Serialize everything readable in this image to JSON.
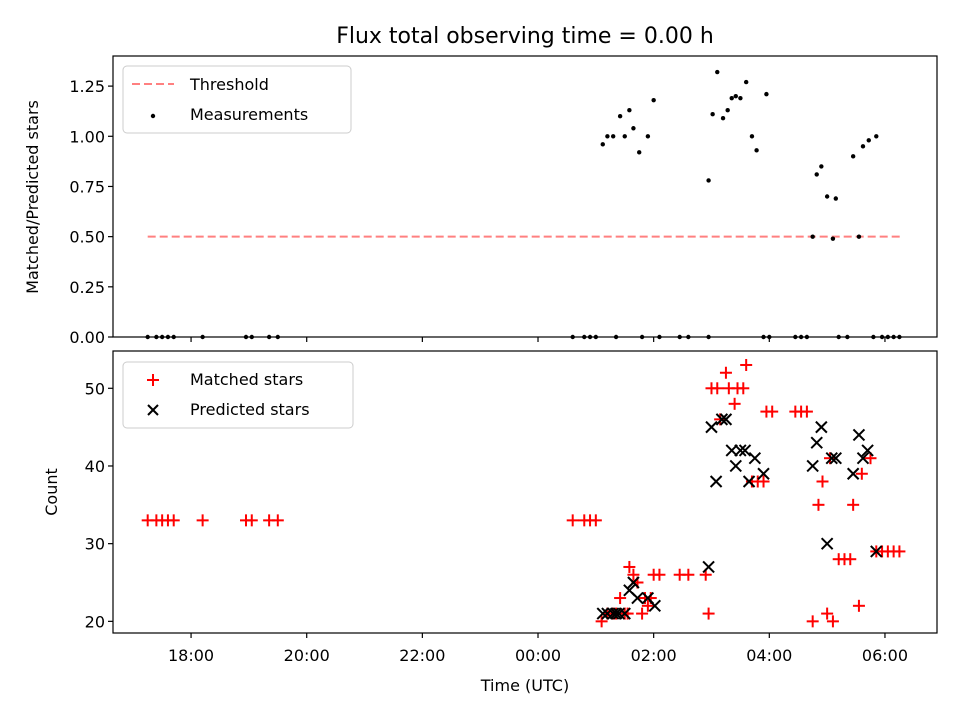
{
  "chart_data": [
    {
      "type": "scatter",
      "title": "Flux total observing time = 0.00 h",
      "xlabel": "",
      "ylabel": "Matched/Predicted stars",
      "xlim": [
        -7.35,
        6.9
      ],
      "ylim": [
        0.0,
        1.4
      ],
      "yticks": [
        0.0,
        0.25,
        0.5,
        0.75,
        1.0,
        1.25
      ],
      "ytick_labels": [
        "0.00",
        "0.25",
        "0.50",
        "0.75",
        "1.00",
        "1.25"
      ],
      "legend": {
        "position": "top-left",
        "entries": [
          "Threshold",
          "Measurements"
        ]
      },
      "series": [
        {
          "name": "Threshold",
          "kind": "dashed-line",
          "color": "#ff8080",
          "x": [
            -6.75,
            6.3
          ],
          "y": [
            0.5,
            0.5
          ]
        },
        {
          "name": "Measurements",
          "kind": "dots",
          "color": "#000000",
          "points": [
            [
              -6.75,
              0
            ],
            [
              -6.6,
              0
            ],
            [
              -6.5,
              0
            ],
            [
              -6.4,
              0
            ],
            [
              -6.3,
              0
            ],
            [
              -5.8,
              0
            ],
            [
              -5.05,
              0
            ],
            [
              -4.95,
              0
            ],
            [
              -4.65,
              0
            ],
            [
              -4.5,
              0
            ],
            [
              0.6,
              0
            ],
            [
              0.8,
              0
            ],
            [
              0.9,
              0
            ],
            [
              1.0,
              0
            ],
            [
              1.35,
              0
            ],
            [
              1.8,
              0
            ],
            [
              2.1,
              0
            ],
            [
              2.45,
              0
            ],
            [
              2.6,
              0
            ],
            [
              2.95,
              0
            ],
            [
              3.9,
              0
            ],
            [
              4.0,
              0
            ],
            [
              4.45,
              0
            ],
            [
              4.55,
              0
            ],
            [
              4.65,
              0
            ],
            [
              5.2,
              0
            ],
            [
              5.35,
              0
            ],
            [
              5.8,
              0
            ],
            [
              5.95,
              0
            ],
            [
              6.05,
              0
            ],
            [
              6.15,
              0
            ],
            [
              6.25,
              0
            ],
            [
              1.12,
              0.96
            ],
            [
              1.2,
              1.0
            ],
            [
              1.3,
              1.0
            ],
            [
              1.42,
              1.1
            ],
            [
              1.5,
              1.0
            ],
            [
              1.58,
              1.13
            ],
            [
              1.65,
              1.04
            ],
            [
              1.75,
              0.92
            ],
            [
              1.9,
              1.0
            ],
            [
              2.0,
              1.18
            ],
            [
              2.95,
              0.78
            ],
            [
              3.02,
              1.11
            ],
            [
              3.1,
              1.32
            ],
            [
              3.2,
              1.09
            ],
            [
              3.28,
              1.13
            ],
            [
              3.35,
              1.19
            ],
            [
              3.42,
              1.2
            ],
            [
              3.5,
              1.19
            ],
            [
              3.6,
              1.27
            ],
            [
              3.7,
              1.0
            ],
            [
              3.78,
              0.93
            ],
            [
              3.95,
              1.21
            ],
            [
              4.75,
              0.5
            ],
            [
              4.82,
              0.81
            ],
            [
              4.9,
              0.85
            ],
            [
              5.0,
              0.7
            ],
            [
              5.1,
              0.49
            ],
            [
              5.15,
              0.69
            ],
            [
              5.45,
              0.9
            ],
            [
              5.55,
              0.5
            ],
            [
              5.62,
              0.95
            ],
            [
              5.72,
              0.98
            ],
            [
              5.85,
              1.0
            ]
          ]
        }
      ]
    },
    {
      "type": "scatter",
      "title": "",
      "xlabel": "Time (UTC)",
      "ylabel": "Count",
      "xlim": [
        -7.35,
        6.9
      ],
      "ylim": [
        18.5,
        54.8
      ],
      "xticks": [
        -6,
        -4,
        -2,
        0,
        2,
        4,
        6
      ],
      "xtick_labels": [
        "18:00",
        "20:00",
        "22:00",
        "00:00",
        "02:00",
        "04:00",
        "06:00"
      ],
      "yticks": [
        20,
        30,
        40,
        50
      ],
      "ytick_labels": [
        "20",
        "30",
        "40",
        "50"
      ],
      "legend": {
        "position": "top-left",
        "entries": [
          "Matched stars",
          "Predicted stars"
        ]
      },
      "series": [
        {
          "name": "Matched stars",
          "marker": "+",
          "color": "#ff0000",
          "points": [
            [
              -6.75,
              33
            ],
            [
              -6.6,
              33
            ],
            [
              -6.5,
              33
            ],
            [
              -6.4,
              33
            ],
            [
              -6.3,
              33
            ],
            [
              -5.8,
              33
            ],
            [
              -5.05,
              33
            ],
            [
              -4.95,
              33
            ],
            [
              -4.65,
              33
            ],
            [
              -4.5,
              33
            ],
            [
              0.6,
              33
            ],
            [
              0.8,
              33
            ],
            [
              0.9,
              33
            ],
            [
              1.0,
              33
            ],
            [
              1.1,
              20
            ],
            [
              1.2,
              21
            ],
            [
              1.3,
              21
            ],
            [
              1.35,
              21
            ],
            [
              1.42,
              23
            ],
            [
              1.5,
              21
            ],
            [
              1.55,
              21
            ],
            [
              1.58,
              27
            ],
            [
              1.65,
              26
            ],
            [
              1.72,
              25
            ],
            [
              1.8,
              21
            ],
            [
              1.85,
              23
            ],
            [
              1.9,
              22
            ],
            [
              1.95,
              23
            ],
            [
              2.0,
              26
            ],
            [
              2.1,
              26
            ],
            [
              2.45,
              26
            ],
            [
              2.6,
              26
            ],
            [
              2.9,
              26
            ],
            [
              2.95,
              21
            ],
            [
              3.0,
              50
            ],
            [
              3.1,
              50
            ],
            [
              3.15,
              46
            ],
            [
              3.25,
              52
            ],
            [
              3.3,
              50
            ],
            [
              3.4,
              48
            ],
            [
              3.45,
              50
            ],
            [
              3.55,
              50
            ],
            [
              3.6,
              53
            ],
            [
              3.7,
              38
            ],
            [
              3.8,
              38
            ],
            [
              3.9,
              38
            ],
            [
              3.95,
              47
            ],
            [
              4.05,
              47
            ],
            [
              4.45,
              47
            ],
            [
              4.55,
              47
            ],
            [
              4.65,
              47
            ],
            [
              4.75,
              20
            ],
            [
              4.85,
              35
            ],
            [
              4.92,
              38
            ],
            [
              5.0,
              21
            ],
            [
              5.05,
              41
            ],
            [
              5.1,
              20
            ],
            [
              5.2,
              28
            ],
            [
              5.3,
              28
            ],
            [
              5.4,
              28
            ],
            [
              5.45,
              35
            ],
            [
              5.55,
              22
            ],
            [
              5.6,
              39
            ],
            [
              5.75,
              41
            ],
            [
              5.85,
              29
            ],
            [
              5.95,
              29
            ],
            [
              6.05,
              29
            ],
            [
              6.15,
              29
            ],
            [
              6.25,
              29
            ]
          ]
        },
        {
          "name": "Predicted stars",
          "marker": "x",
          "color": "#000000",
          "points": [
            [
              1.12,
              21
            ],
            [
              1.2,
              21
            ],
            [
              1.3,
              21
            ],
            [
              1.35,
              21
            ],
            [
              1.4,
              21
            ],
            [
              1.5,
              21
            ],
            [
              1.58,
              24
            ],
            [
              1.65,
              25
            ],
            [
              1.72,
              23
            ],
            [
              1.9,
              23
            ],
            [
              2.02,
              22
            ],
            [
              2.95,
              27
            ],
            [
              3.0,
              45
            ],
            [
              3.08,
              38
            ],
            [
              3.18,
              46
            ],
            [
              3.25,
              46
            ],
            [
              3.35,
              42
            ],
            [
              3.42,
              40
            ],
            [
              3.5,
              42
            ],
            [
              3.58,
              42
            ],
            [
              3.65,
              38
            ],
            [
              3.75,
              41
            ],
            [
              3.9,
              39
            ],
            [
              4.75,
              40
            ],
            [
              4.82,
              43
            ],
            [
              4.9,
              45
            ],
            [
              5.0,
              30
            ],
            [
              5.08,
              41
            ],
            [
              5.15,
              41
            ],
            [
              5.45,
              39
            ],
            [
              5.55,
              44
            ],
            [
              5.62,
              41
            ],
            [
              5.7,
              42
            ],
            [
              5.85,
              29
            ]
          ]
        }
      ]
    }
  ]
}
